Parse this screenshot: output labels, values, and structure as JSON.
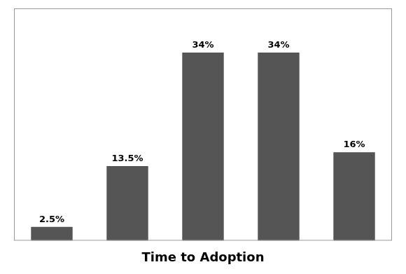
{
  "chart_data": {
    "type": "bar",
    "xlabel": "Time to Adoption",
    "categories": [
      null,
      null,
      null,
      null,
      null
    ],
    "values": [
      2.5,
      13.5,
      34,
      34,
      16
    ],
    "value_labels": [
      "2.5%",
      "13.5%",
      "34%",
      "34%",
      "16%"
    ],
    "data_labels": true,
    "color": "#555555",
    "ylim": [
      0,
      42
    ],
    "grid": false,
    "legend": false,
    "tick_labels": false
  }
}
